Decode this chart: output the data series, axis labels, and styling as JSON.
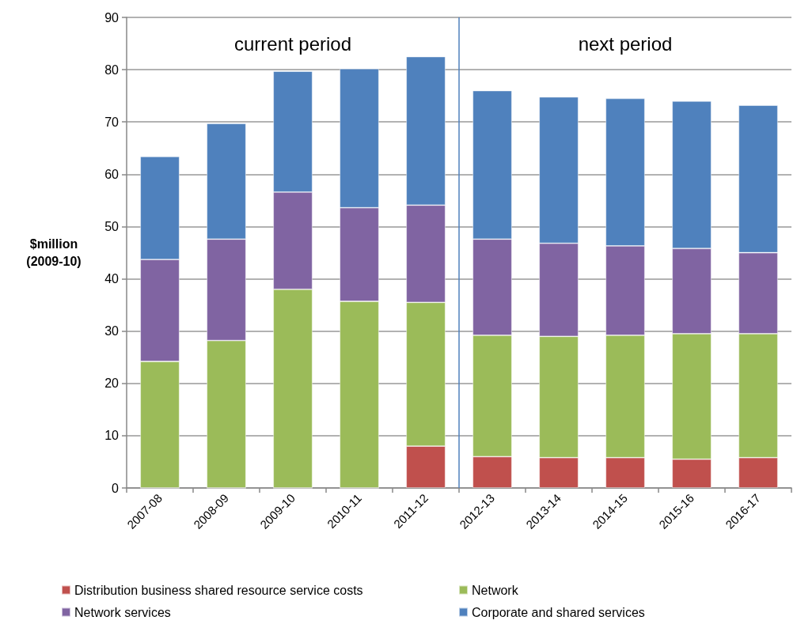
{
  "chart_data": {
    "type": "bar",
    "ylabel": "$million (2009-10)",
    "stacked": true,
    "grid": "y",
    "legend": "bottom",
    "categories": [
      "2007-08",
      "2008-09",
      "2009-10",
      "2010-11",
      "2011-12",
      "2012-13",
      "2013-14",
      "2014-15",
      "2015-16",
      "2016-17"
    ],
    "series": [
      {
        "name": "Distribution business shared resource service costs",
        "color": "#c0504d",
        "values": [
          0,
          0,
          0,
          0,
          8.0,
          6.0,
          5.8,
          5.8,
          5.5,
          5.8
        ]
      },
      {
        "name": "Network",
        "color": "#9bbb59",
        "values": [
          24.2,
          28.2,
          38.0,
          35.7,
          27.5,
          23.2,
          23.2,
          23.4,
          24.0,
          23.7
        ]
      },
      {
        "name": "Network services",
        "color": "#8064a2",
        "values": [
          19.5,
          19.4,
          18.6,
          17.9,
          18.6,
          18.4,
          17.8,
          17.1,
          16.3,
          15.5
        ]
      },
      {
        "name": "Corporate and shared services",
        "color": "#4f81bd",
        "values": [
          19.7,
          22.1,
          23.1,
          26.6,
          28.4,
          28.4,
          28.0,
          28.2,
          28.2,
          28.2
        ]
      }
    ],
    "ylim": [
      0,
      90
    ],
    "yticks": [
      0,
      10,
      20,
      30,
      40,
      50,
      60,
      70,
      80,
      90
    ],
    "ref_lines": [
      {
        "axis": "x",
        "value": "2012-13",
        "color": "#4f81bd"
      }
    ],
    "annotations": [
      "current period",
      "next period"
    ]
  }
}
